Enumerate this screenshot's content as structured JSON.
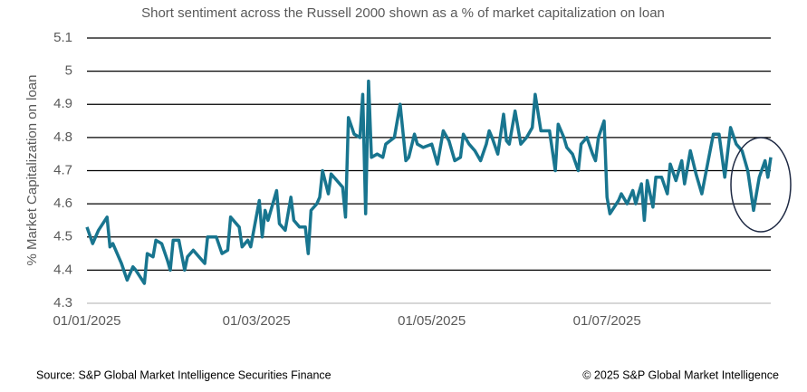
{
  "chart_data": {
    "type": "line",
    "title": "Short sentiment across the Russell 2000 shown as a % of market capitalization on loan",
    "y_label": "% Market Capitalization on loan",
    "source": "Source: S&P Global Market Intelligence Securities Finance",
    "copyright": "© 2025 S&P Global Market Intelligence",
    "color": "#18758f",
    "grid": true,
    "x": [
      "01/01/2025",
      "03/01/2025",
      "05/01/2025",
      "08/01/2025",
      "09/01/2025",
      "10/01/2025",
      "13/01/2025",
      "15/01/2025",
      "17/01/2025",
      "18/01/2025",
      "21/01/2025",
      "22/01/2025",
      "24/01/2025",
      "25/01/2025",
      "27/01/2025",
      "29/01/2025",
      "30/01/2025",
      "31/01/2025",
      "02/02/2025",
      "04/02/2025",
      "05/02/2025",
      "07/02/2025",
      "09/02/2025",
      "11/02/2025",
      "12/02/2025",
      "15/02/2025",
      "17/02/2025",
      "19/02/2025",
      "20/02/2025",
      "23/02/2025",
      "24/02/2025",
      "26/02/2025",
      "27/02/2025",
      "02/03/2025",
      "03/03/2025",
      "04/03/2025",
      "05/03/2025",
      "08/03/2025",
      "09/03/2025",
      "11/03/2025",
      "13/03/2025",
      "14/03/2025",
      "16/03/2025",
      "18/03/2025",
      "19/03/2025",
      "20/03/2025",
      "22/03/2025",
      "23/03/2025",
      "24/03/2025",
      "26/03/2025",
      "27/03/2025",
      "29/03/2025",
      "31/03/2025",
      "01/04/2025",
      "02/04/2025",
      "04/04/2025",
      "06/04/2025",
      "07/04/2025",
      "08/04/2025",
      "09/04/2025",
      "10/04/2025",
      "12/04/2025",
      "14/04/2025",
      "15/04/2025",
      "18/04/2025",
      "19/04/2025",
      "20/04/2025",
      "22/04/2025",
      "23/04/2025",
      "25/04/2025",
      "26/04/2025",
      "28/04/2025",
      "01/05/2025",
      "03/05/2025",
      "05/05/2025",
      "07/05/2025",
      "09/05/2025",
      "11/05/2025",
      "12/05/2025",
      "14/05/2025",
      "16/05/2025",
      "18/05/2025",
      "20/05/2025",
      "21/05/2025",
      "22/05/2025",
      "24/05/2025",
      "26/05/2025",
      "27/05/2025",
      "28/05/2025",
      "30/05/2025",
      "01/06/2025",
      "03/06/2025",
      "05/06/2025",
      "06/06/2025",
      "08/06/2025",
      "10/06/2025",
      "11/06/2025",
      "13/06/2025",
      "14/06/2025",
      "16/06/2025",
      "17/06/2025",
      "19/06/2025",
      "21/06/2025",
      "22/06/2025",
      "24/06/2025",
      "26/06/2025",
      "27/06/2025",
      "28/06/2025",
      "30/06/2025",
      "01/07/2025",
      "02/07/2025",
      "05/07/2025",
      "06/07/2025",
      "08/07/2025",
      "10/07/2025",
      "11/07/2025",
      "13/07/2025",
      "14/07/2025",
      "15/07/2025",
      "17/07/2025",
      "18/07/2025",
      "20/07/2025",
      "22/07/2025",
      "23/07/2025",
      "25/07/2025",
      "27/07/2025",
      "28/07/2025",
      "30/07/2025",
      "01/08/2025",
      "03/08/2025",
      "05/08/2025",
      "07/08/2025",
      "09/08/2025",
      "11/08/2025",
      "13/08/2025",
      "15/08/2025",
      "17/08/2025",
      "19/08/2025",
      "21/08/2025",
      "23/08/2025",
      "25/08/2025",
      "26/08/2025",
      "27/08/2025"
    ],
    "values": [
      4.53,
      4.48,
      4.52,
      4.56,
      4.47,
      4.48,
      4.42,
      4.37,
      4.41,
      4.4,
      4.36,
      4.45,
      4.44,
      4.49,
      4.48,
      4.43,
      4.4,
      4.49,
      4.49,
      4.4,
      4.44,
      4.46,
      4.44,
      4.42,
      4.5,
      4.5,
      4.45,
      4.46,
      4.56,
      4.53,
      4.47,
      4.49,
      4.47,
      4.61,
      4.5,
      4.58,
      4.55,
      4.64,
      4.54,
      4.52,
      4.62,
      4.55,
      4.53,
      4.53,
      4.45,
      4.58,
      4.6,
      4.62,
      4.7,
      4.63,
      4.69,
      4.67,
      4.65,
      4.56,
      4.86,
      4.81,
      4.8,
      4.93,
      4.57,
      4.97,
      4.74,
      4.75,
      4.74,
      4.78,
      4.8,
      4.85,
      4.9,
      4.73,
      4.74,
      4.81,
      4.78,
      4.77,
      4.78,
      4.72,
      4.82,
      4.79,
      4.73,
      4.74,
      4.81,
      4.78,
      4.76,
      4.73,
      4.78,
      4.82,
      4.8,
      4.75,
      4.87,
      4.79,
      4.78,
      4.88,
      4.78,
      4.8,
      4.83,
      4.93,
      4.82,
      4.82,
      4.82,
      4.7,
      4.84,
      4.8,
      4.77,
      4.75,
      4.7,
      4.78,
      4.8,
      4.75,
      4.73,
      4.8,
      4.85,
      4.62,
      4.57,
      4.61,
      4.63,
      4.6,
      4.64,
      4.6,
      4.66,
      4.55,
      4.67,
      4.59,
      4.68,
      4.68,
      4.63,
      4.72,
      4.67,
      4.73,
      4.66,
      4.76,
      4.69,
      4.63,
      4.72,
      4.81,
      4.81,
      4.68,
      4.83,
      4.78,
      4.76,
      4.7,
      4.58,
      4.68,
      4.73,
      4.68,
      4.74
    ],
    "xlim": [
      "01/01/2025",
      "27/08/2025"
    ],
    "xticks": [
      "01/01/2025",
      "01/03/2025",
      "01/05/2025",
      "01/07/2025"
    ],
    "ylim": [
      4.3,
      5.1
    ],
    "yticks": [
      4.3,
      4.4,
      4.5,
      4.6,
      4.7,
      4.8,
      4.9,
      5.0,
      5.1
    ]
  }
}
